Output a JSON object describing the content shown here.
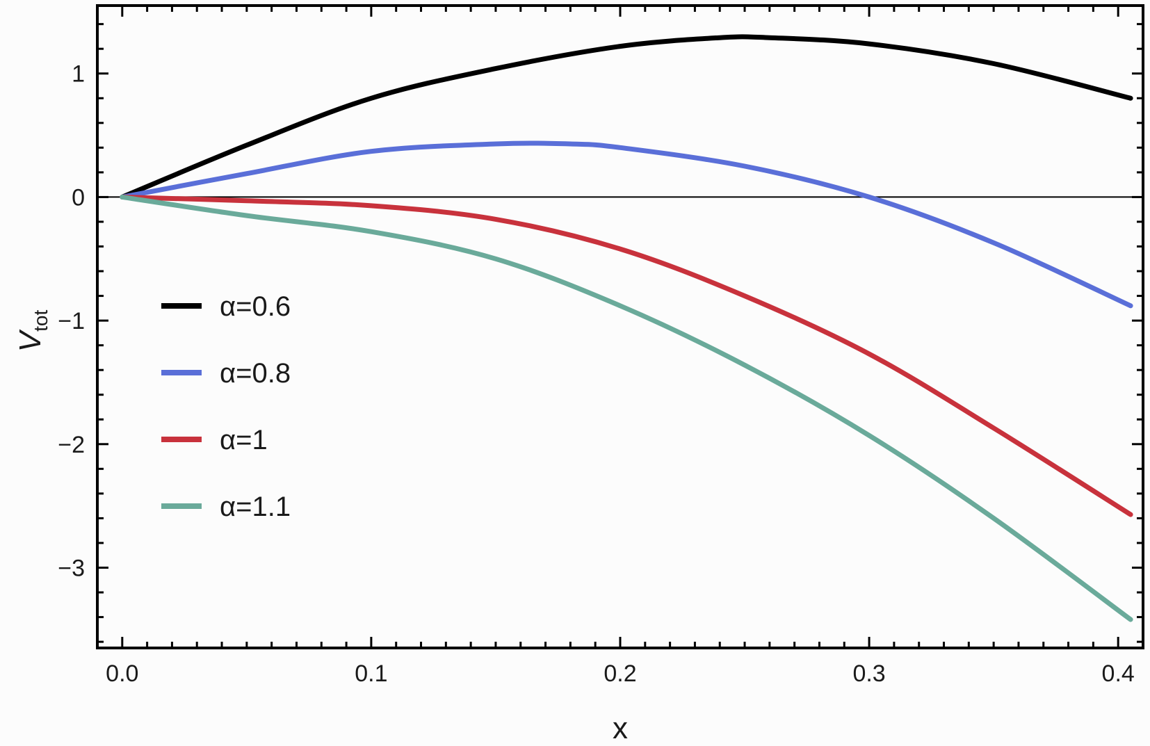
{
  "chart_data": {
    "type": "line",
    "title": "",
    "xlabel": "x",
    "ylabel": "V",
    "ylabel_sub": "tot",
    "xlim": [
      -0.01,
      0.41
    ],
    "ylim": [
      -3.65,
      1.55
    ],
    "xticks": [
      0.0,
      0.1,
      0.2,
      0.3,
      0.4
    ],
    "xtick_labels": [
      "0.0",
      "0.1",
      "0.2",
      "0.3",
      "0.4"
    ],
    "yticks": [
      1,
      0,
      -1,
      -2,
      -3
    ],
    "ytick_labels": [
      "1",
      "0",
      "−1",
      "−2",
      "−3"
    ],
    "grid": false,
    "zero_line": true,
    "legend_position": "left-center",
    "series": [
      {
        "name": "α=0.6",
        "color": "#000000",
        "x": [
          0.0,
          0.05,
          0.1,
          0.15,
          0.2,
          0.24,
          0.26,
          0.3,
          0.35,
          0.405
        ],
        "y": [
          0.0,
          0.42,
          0.8,
          1.04,
          1.22,
          1.29,
          1.29,
          1.24,
          1.08,
          0.8
        ]
      },
      {
        "name": "α=0.8",
        "color": "#5a6fd8",
        "x": [
          0.0,
          0.05,
          0.1,
          0.15,
          0.18,
          0.2,
          0.25,
          0.3,
          0.35,
          0.405
        ],
        "y": [
          0.0,
          0.19,
          0.37,
          0.43,
          0.43,
          0.4,
          0.25,
          0.0,
          -0.37,
          -0.88
        ]
      },
      {
        "name": "α=1",
        "color": "#c8323c",
        "x": [
          0.0,
          0.05,
          0.1,
          0.15,
          0.2,
          0.25,
          0.3,
          0.35,
          0.405
        ],
        "y": [
          0.0,
          -0.03,
          -0.07,
          -0.18,
          -0.42,
          -0.8,
          -1.27,
          -1.87,
          -2.57
        ]
      },
      {
        "name": "α=1.1",
        "color": "#6aaa9a",
        "x": [
          0.0,
          0.05,
          0.1,
          0.15,
          0.2,
          0.25,
          0.3,
          0.35,
          0.405
        ],
        "y": [
          0.0,
          -0.15,
          -0.28,
          -0.5,
          -0.88,
          -1.36,
          -1.93,
          -2.6,
          -3.42
        ]
      }
    ]
  }
}
